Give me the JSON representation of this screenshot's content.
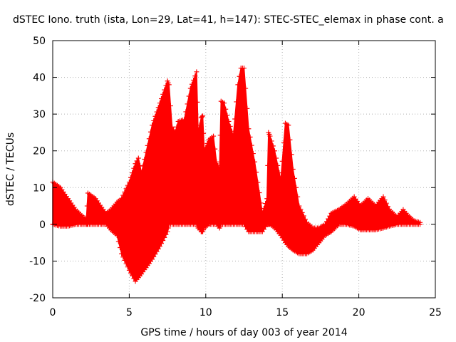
{
  "chart_data": {
    "type": "area",
    "title": "dSTEC Iono. truth (ista, Lon=29, Lat=41, h=147): STEC-STEC_elemax in phase cont. a",
    "xlabel": "GPS time / hours of day 003 of year 2014",
    "ylabel": "dSTEC  / TECUs",
    "xlim": [
      0,
      25
    ],
    "ylim": [
      -20,
      50
    ],
    "xticks": [
      0,
      5,
      10,
      15,
      20,
      25
    ],
    "yticks": [
      -20,
      -10,
      0,
      10,
      20,
      30,
      40,
      50
    ],
    "grid": true,
    "marker": "+",
    "color": "#ff0000",
    "envelope": {
      "x": [
        0.0,
        0.5,
        1.0,
        1.5,
        2.0,
        2.2,
        2.3,
        2.8,
        3.3,
        3.5,
        3.8,
        4.2,
        4.5,
        5.0,
        5.4,
        5.6,
        5.8,
        6.5,
        7.0,
        7.5,
        7.6,
        7.8,
        8.0,
        8.2,
        8.6,
        9.0,
        9.4,
        9.5,
        9.7,
        9.8,
        9.9,
        10.2,
        10.5,
        10.7,
        10.9,
        11.0,
        11.2,
        11.5,
        11.8,
        12.1,
        12.3,
        12.5,
        12.8,
        13.2,
        13.7,
        14.0,
        14.1,
        14.2,
        14.5,
        14.9,
        15.2,
        15.4,
        15.7,
        16.1,
        16.6,
        17.0,
        17.4,
        17.8,
        18.2,
        18.7,
        19.2,
        19.7,
        20.1,
        20.6,
        21.1,
        21.6,
        22.0,
        22.5,
        22.9,
        23.2,
        23.6,
        24.0
      ],
      "upper": [
        11.5,
        10.0,
        7.0,
        4.0,
        2.0,
        1.5,
        8.5,
        7.0,
        4.0,
        3.0,
        4.0,
        6.0,
        7.0,
        11.5,
        16.5,
        18.0,
        14.0,
        27.0,
        33.0,
        39.0,
        38.0,
        26.5,
        25.0,
        28.0,
        28.5,
        37.0,
        41.5,
        25.0,
        29.0,
        29.5,
        20.0,
        23.0,
        24.0,
        17.0,
        15.0,
        33.5,
        33.0,
        28.0,
        24.0,
        38.0,
        42.5,
        42.5,
        26.0,
        17.0,
        3.0,
        7.0,
        25.0,
        24.0,
        20.0,
        12.0,
        27.5,
        27.0,
        15.0,
        5.0,
        0.5,
        -1.0,
        -1.0,
        0.0,
        3.0,
        4.0,
        5.5,
        7.5,
        5.0,
        7.0,
        5.0,
        7.5,
        4.0,
        2.0,
        4.0,
        2.5,
        1.0,
        0.5
      ],
      "lower": [
        0.0,
        -0.5,
        -0.5,
        0.0,
        0.0,
        0.0,
        0.0,
        0.0,
        0.0,
        0.0,
        -1.5,
        -3.0,
        -8.0,
        -12.5,
        -15.5,
        -14.5,
        -13.5,
        -9.5,
        -6.0,
        -2.0,
        0.0,
        0.0,
        0.0,
        0.0,
        0.0,
        0.0,
        0.0,
        -1.0,
        -2.0,
        -2.0,
        -1.0,
        0.0,
        0.0,
        0.0,
        -1.0,
        0.0,
        0.0,
        0.0,
        0.0,
        0.0,
        0.0,
        0.0,
        -2.0,
        -2.0,
        -2.0,
        0.0,
        0.0,
        0.0,
        -1.0,
        -3.0,
        -5.0,
        -6.0,
        -7.0,
        -8.0,
        -8.0,
        -7.0,
        -5.0,
        -3.0,
        -2.0,
        0.0,
        0.0,
        -0.5,
        -1.5,
        -1.5,
        -1.5,
        -1.0,
        -0.5,
        0.0,
        0.0,
        0.0,
        0.0,
        0.0
      ]
    }
  }
}
